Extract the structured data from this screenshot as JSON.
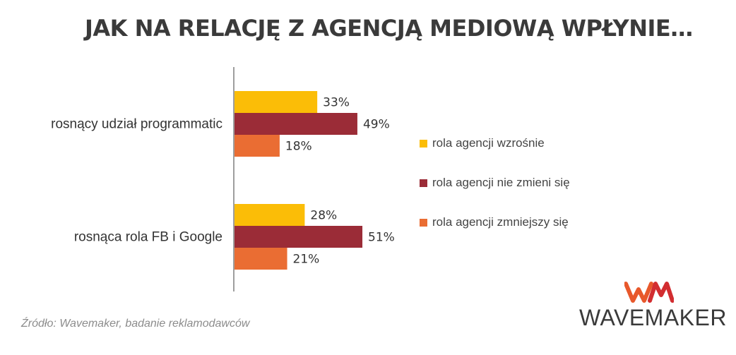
{
  "title": "JAK NA RELACJĘ Z AGENCJĄ MEDIOWĄ WPŁYNIE…",
  "source": "Źródło: Wavemaker, badanie reklamodawców",
  "logo": {
    "text": "WAVEMAKER",
    "mark": "WM",
    "colors": [
      "#e8582b",
      "#d22d30",
      "#f2a71b"
    ]
  },
  "colors": {
    "title": "#3a3a3a",
    "axis": "#7f7f7f",
    "text": "#333333"
  },
  "chart_data": {
    "type": "bar",
    "orientation": "horizontal",
    "categories": [
      "rosnący udział programmatic",
      "rosnąca rola FB i Google"
    ],
    "unit": "%",
    "xlim": [
      0,
      60
    ],
    "grid": false,
    "legend_position": "right",
    "series": [
      {
        "name": "rola agencji wzrośnie",
        "color": "#fbbd07",
        "values": [
          33,
          28
        ]
      },
      {
        "name": "rola agencji nie zmieni się",
        "color": "#9b2c37",
        "values": [
          49,
          51
        ]
      },
      {
        "name": "rola agencji zmniejszy się",
        "color": "#ea6d33",
        "values": [
          18,
          21
        ]
      }
    ]
  }
}
